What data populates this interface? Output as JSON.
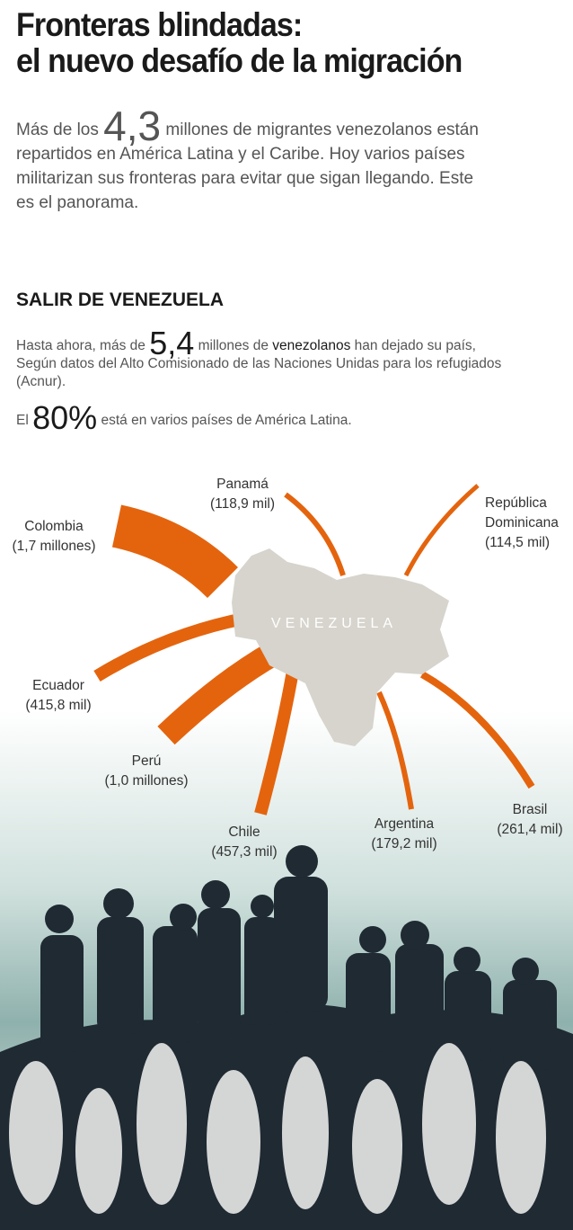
{
  "title": {
    "line1": "Fronteras blindadas:",
    "line2": "el nuevo desafío de la migración"
  },
  "intro": {
    "before": "Más de los",
    "number": "4,3",
    "after": "millones de migrantes venezolanos están repartidos en América Latina y el Caribe. Hoy varios países militarizan sus fronteras para evitar que sigan llegando. Este es el panorama."
  },
  "section": {
    "heading": "SALIR DE VENEZUELA",
    "p1": {
      "before": "Hasta ahora, más de",
      "number": "5,4",
      "mid": "millones de",
      "bold": "venezolanos",
      "after": "han dejado su país, Según datos del Alto Comisionado de las Naciones Unidas para los refugiados (Acnur)."
    },
    "p2": {
      "before": "El",
      "number": "80%",
      "after": "está en varios países de América Latina."
    }
  },
  "map": {
    "origin": "VENEZUELA",
    "destinations": [
      {
        "name": "Panamá",
        "amount": "(118,9 mil)"
      },
      {
        "name": "Colombia",
        "amount": "(1,7 millones)"
      },
      {
        "name": "República Dominicana",
        "amount": "(114,5 mil)"
      },
      {
        "name": "Ecuador",
        "amount": "(415,8 mil)"
      },
      {
        "name": "Perú",
        "amount": "(1,0 millones)"
      },
      {
        "name": "Chile",
        "amount": "(457,3 mil)"
      },
      {
        "name": "Argentina",
        "amount": "(179,2 mil)"
      },
      {
        "name": "Brasil",
        "amount": "(261,4 mil)"
      }
    ]
  }
}
